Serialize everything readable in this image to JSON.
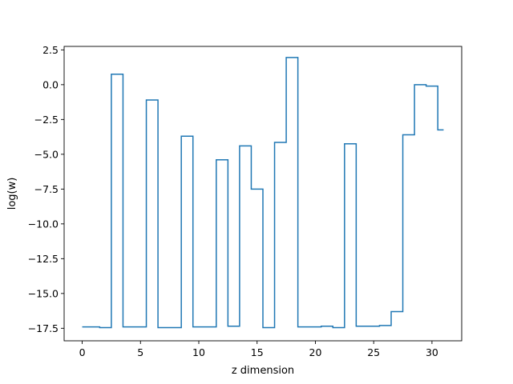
{
  "chart_data": {
    "type": "line",
    "drawstyle": "steps-mid",
    "title": "",
    "xlabel": "z dimension",
    "ylabel": "log(w)",
    "xlim": [
      -1.55,
      32.55
    ],
    "ylim": [
      -18.4,
      2.75
    ],
    "xticks": [
      0,
      5,
      10,
      15,
      20,
      25,
      30
    ],
    "xtick_labels": [
      "0",
      "5",
      "10",
      "15",
      "20",
      "25",
      "30"
    ],
    "yticks": [
      2.5,
      0.0,
      -2.5,
      -5.0,
      -7.5,
      -10.0,
      -12.5,
      -15.0,
      -17.5
    ],
    "ytick_labels": [
      "2.5",
      "0.0",
      "−2.5",
      "−5.0",
      "−7.5",
      "−10.0",
      "−12.5",
      "−15.0",
      "−17.5"
    ],
    "grid": false,
    "color": "#1f77b4",
    "x": [
      0,
      1,
      2,
      3,
      4,
      5,
      6,
      7,
      8,
      9,
      10,
      11,
      12,
      13,
      14,
      15,
      16,
      17,
      18,
      19,
      20,
      21,
      22,
      23,
      24,
      25,
      26,
      27,
      28,
      29,
      30,
      31
    ],
    "values": [
      -17.4,
      -17.4,
      -17.45,
      0.75,
      -17.4,
      -17.4,
      -1.1,
      -17.45,
      -17.45,
      -3.7,
      -17.4,
      -17.4,
      -5.4,
      -17.35,
      -4.4,
      -7.5,
      -17.45,
      -4.15,
      1.95,
      -17.4,
      -17.4,
      -17.35,
      -17.45,
      -4.25,
      -17.35,
      -17.35,
      -17.3,
      -16.3,
      -3.6,
      0.0,
      -0.1,
      -3.25
    ]
  }
}
